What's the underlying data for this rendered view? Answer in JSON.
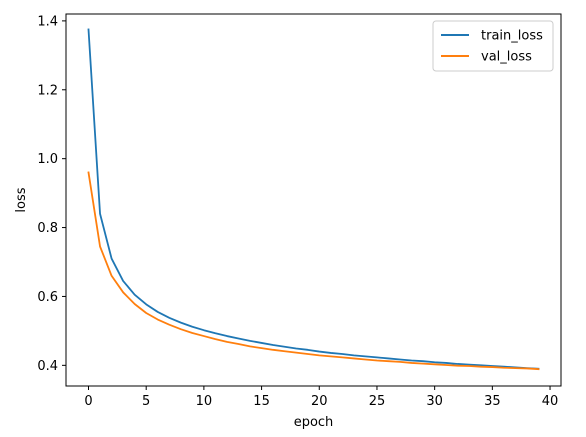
{
  "chart_data": {
    "type": "line",
    "title": "",
    "xlabel": "epoch",
    "ylabel": "loss",
    "xlim": [
      -1.95,
      40.95
    ],
    "ylim": [
      0.34,
      1.42
    ],
    "xticks": [
      0,
      5,
      10,
      15,
      20,
      25,
      30,
      35,
      40
    ],
    "yticks": [
      0.4,
      0.6,
      0.8,
      1.0,
      1.2,
      1.4
    ],
    "ytick_labels": [
      "0.4",
      "0.6",
      "0.8",
      "1.0",
      "1.2",
      "1.4"
    ],
    "grid": false,
    "legend_position": "top-right",
    "x": [
      0,
      1,
      2,
      3,
      4,
      5,
      6,
      7,
      8,
      9,
      10,
      11,
      12,
      13,
      14,
      15,
      16,
      17,
      18,
      19,
      20,
      21,
      22,
      23,
      24,
      25,
      26,
      27,
      28,
      29,
      30,
      31,
      32,
      33,
      34,
      35,
      36,
      37,
      38,
      39
    ],
    "series": [
      {
        "name": "train_loss",
        "color": "#1f77b4",
        "values": [
          1.375,
          0.84,
          0.71,
          0.645,
          0.605,
          0.577,
          0.555,
          0.538,
          0.524,
          0.512,
          0.502,
          0.493,
          0.485,
          0.478,
          0.471,
          0.465,
          0.459,
          0.454,
          0.449,
          0.445,
          0.44,
          0.436,
          0.433,
          0.429,
          0.426,
          0.423,
          0.42,
          0.417,
          0.414,
          0.412,
          0.409,
          0.407,
          0.404,
          0.402,
          0.4,
          0.398,
          0.396,
          0.394,
          0.392,
          0.39
        ]
      },
      {
        "name": "val_loss",
        "color": "#ff7f0e",
        "values": [
          0.96,
          0.745,
          0.66,
          0.612,
          0.578,
          0.552,
          0.533,
          0.518,
          0.505,
          0.494,
          0.485,
          0.476,
          0.468,
          0.462,
          0.455,
          0.45,
          0.445,
          0.441,
          0.437,
          0.433,
          0.429,
          0.426,
          0.423,
          0.42,
          0.417,
          0.414,
          0.412,
          0.41,
          0.407,
          0.405,
          0.403,
          0.401,
          0.399,
          0.398,
          0.396,
          0.395,
          0.393,
          0.392,
          0.391,
          0.389
        ]
      }
    ]
  }
}
